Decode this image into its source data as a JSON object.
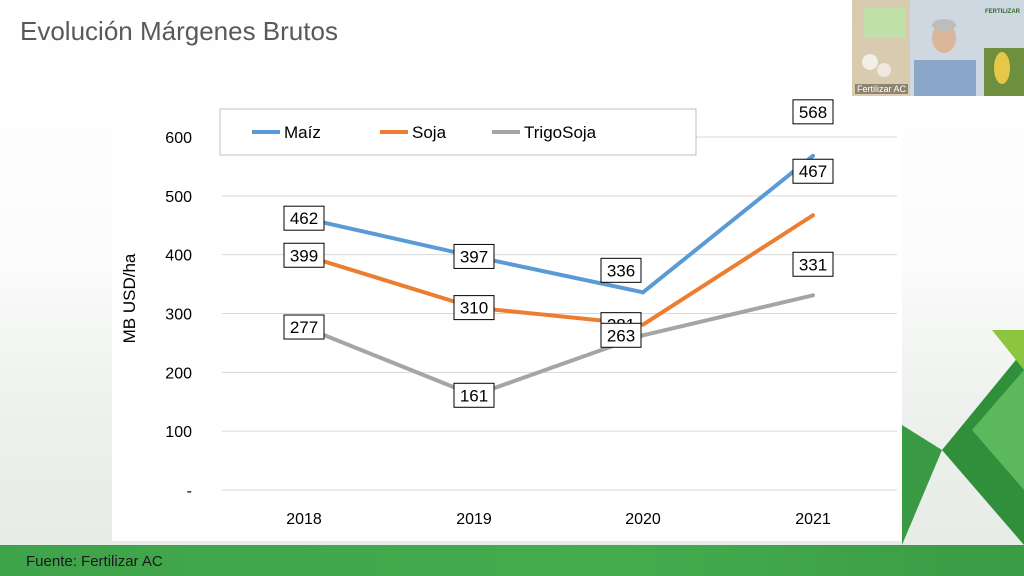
{
  "slide": {
    "title": "Evolución Márgenes Brutos",
    "footer": "Fuente: Fertilizar AC"
  },
  "video": {
    "participant_name": "Fertilizar AC",
    "logo_text": "FERTILIZAR"
  },
  "colors": {
    "maiz": "#5b9bd5",
    "soja": "#ed7d31",
    "trigosoja": "#a5a5a5",
    "footer_green": "#45a94e"
  },
  "chart_data": {
    "type": "line",
    "categories": [
      "2018",
      "2019",
      "2020",
      "2021"
    ],
    "series": [
      {
        "name": "Maíz",
        "values": [
          462,
          397,
          336,
          568
        ],
        "color": "#5b9bd5"
      },
      {
        "name": "Soja",
        "values": [
          399,
          310,
          281,
          467
        ],
        "color": "#ed7d31"
      },
      {
        "name": "TrigoSoja",
        "values": [
          277,
          161,
          263,
          331
        ],
        "color": "#a5a5a5"
      }
    ],
    "ylabel": "MB USD/ha",
    "xlabel": "",
    "ylim": [
      0,
      600
    ],
    "yticks": [
      "-",
      "100",
      "200",
      "300",
      "400",
      "500",
      "600"
    ],
    "grid": true,
    "legend": "top"
  }
}
